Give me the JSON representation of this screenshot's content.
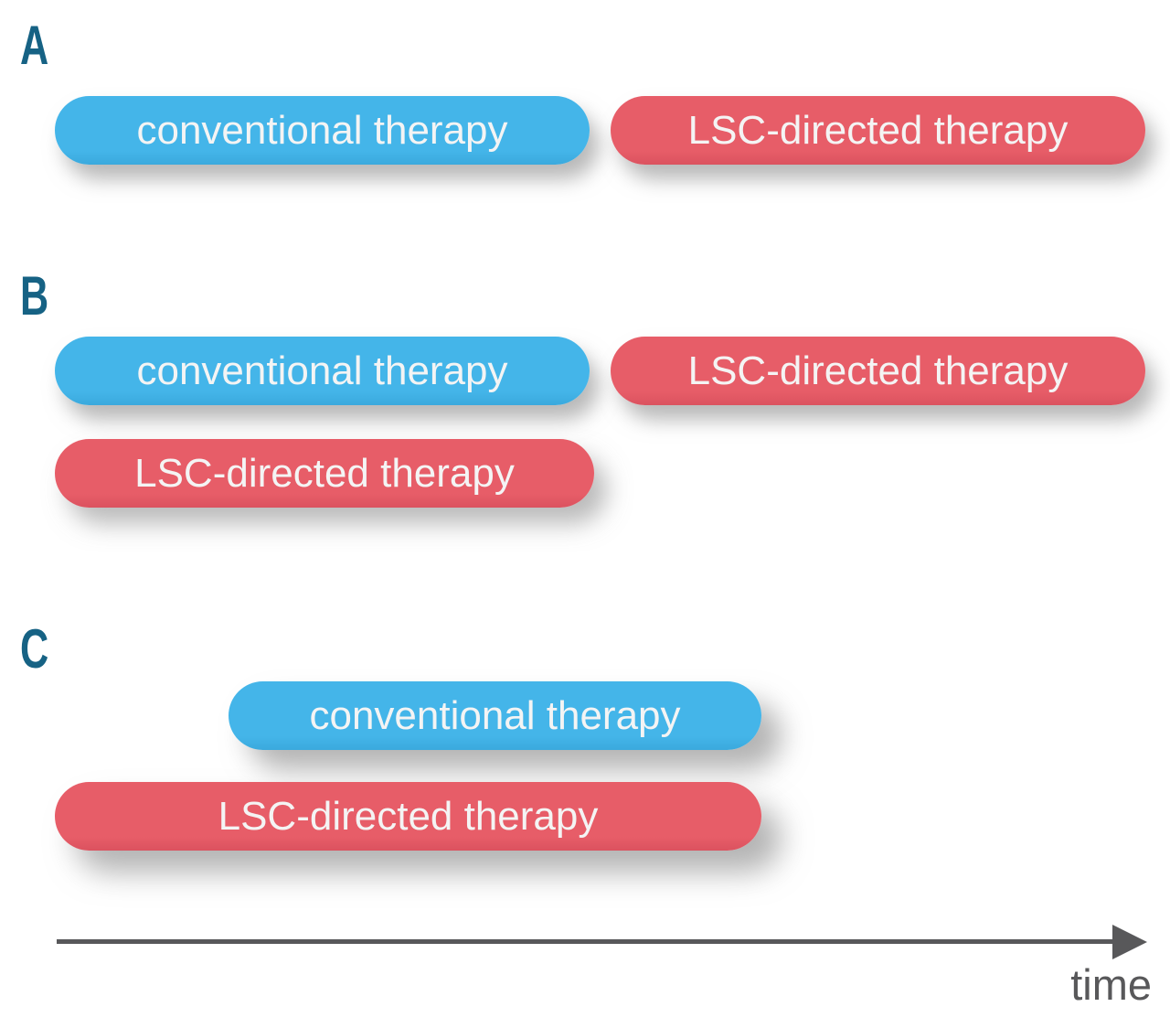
{
  "figure": {
    "panels": [
      {
        "label": "A",
        "pills": [
          {
            "name": "conventional",
            "text": "conventional therapy"
          },
          {
            "name": "lsc",
            "text": "LSC-directed therapy"
          }
        ]
      },
      {
        "label": "B",
        "pills": [
          {
            "name": "conventional",
            "text": "conventional therapy"
          },
          {
            "name": "lsc",
            "text": "LSC-directed therapy"
          },
          {
            "name": "lsc",
            "text": "LSC-directed therapy"
          }
        ]
      },
      {
        "label": "C",
        "pills": [
          {
            "name": "conventional",
            "text": "conventional therapy"
          },
          {
            "name": "lsc",
            "text": "LSC-directed therapy"
          }
        ]
      }
    ],
    "axis": {
      "label": "time"
    }
  },
  "colors": {
    "pill_blue": "#44b5e9",
    "pill_red": "#e75d68",
    "pill_text": "#f4f4f4",
    "panel_letter": "#166284",
    "axis": "#58585a"
  }
}
